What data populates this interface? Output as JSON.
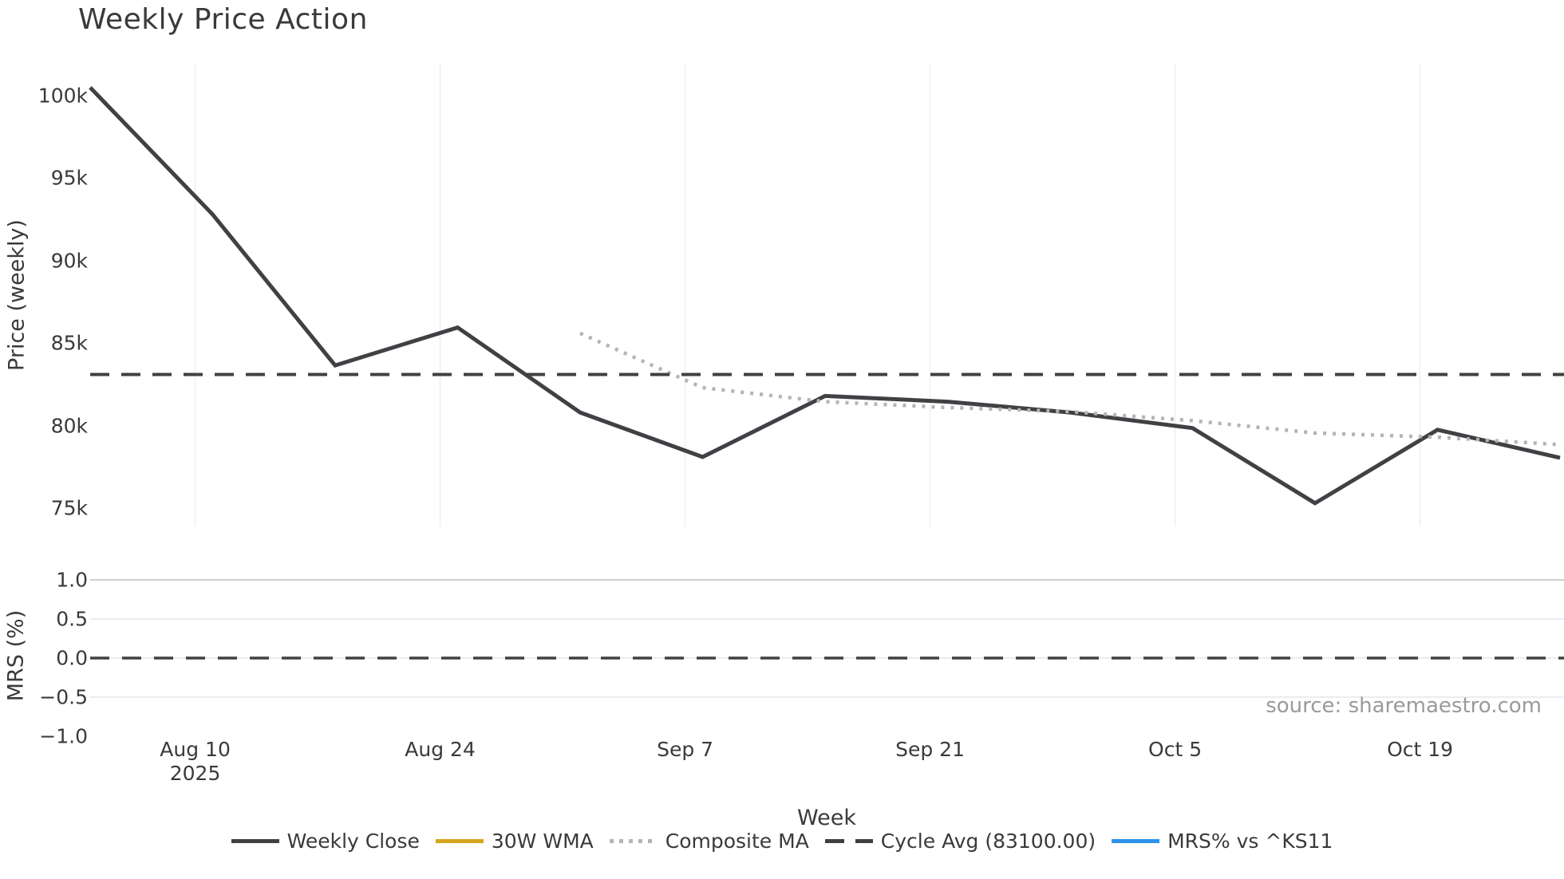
{
  "title": "Weekly Price Action",
  "source_note": "source: sharemaestro.com",
  "colors": {
    "weekly_close": "#3f4144",
    "wma_30w": "#d6a51f",
    "composite_ma": "#b4b4b4",
    "cycle_avg": "#404040",
    "mrs_line": "#2f93e8",
    "text": "#3a3a3a",
    "muted_text": "#9a9a9a",
    "grid_vertical": "#f2f2f2",
    "grid_horizontal": "#e9ecf2",
    "grid_horizontal_top": "#cdcfd2"
  },
  "price_panel": {
    "ylabel": "Price (weekly)",
    "yticks": [
      {
        "label": "100k",
        "value": 100000
      },
      {
        "label": "95k",
        "value": 95000
      },
      {
        "label": "90k",
        "value": 90000
      },
      {
        "label": "85k",
        "value": 85000
      },
      {
        "label": "80k",
        "value": 80000
      },
      {
        "label": "75k",
        "value": 75000
      }
    ]
  },
  "mrs_panel": {
    "ylabel": "MRS (%)",
    "yticks": [
      {
        "label": "1.0",
        "value": 1.0
      },
      {
        "label": "0.5",
        "value": 0.5
      },
      {
        "label": "0.0",
        "value": 0.0
      },
      {
        "label": "−0.5",
        "value": -0.5
      },
      {
        "label": "−1.0",
        "value": -1.0
      }
    ]
  },
  "x_axis": {
    "label": "Week",
    "ticks": [
      {
        "label": "Aug 10",
        "sublabel": "2025",
        "day": 6
      },
      {
        "label": "Aug 24",
        "sublabel": "",
        "day": 20
      },
      {
        "label": "Sep 7",
        "sublabel": "",
        "day": 34
      },
      {
        "label": "Sep 21",
        "sublabel": "",
        "day": 48
      },
      {
        "label": "Oct 5",
        "sublabel": "",
        "day": 62
      },
      {
        "label": "Oct 19",
        "sublabel": "",
        "day": 76
      }
    ]
  },
  "legend": [
    {
      "label": "Weekly Close",
      "style": "solid",
      "color": "#3f4144"
    },
    {
      "label": "30W WMA",
      "style": "solid",
      "color": "#d6a51f"
    },
    {
      "label": "Composite MA",
      "style": "dotted",
      "color": "#b4b4b4"
    },
    {
      "label": "Cycle Avg (83100.00)",
      "style": "dashed",
      "color": "#404040"
    },
    {
      "label": "MRS% vs ^KS11",
      "style": "solid",
      "color": "#2f93e8"
    }
  ],
  "chart_data": [
    {
      "type": "line",
      "panel": "price",
      "title": "Weekly Price Action",
      "xlabel": "Week",
      "ylabel": "Price (weekly)",
      "x_unit": "days since first visible weekly point (weekly spacing, first point ~2025-08-04)",
      "x_tick_labels": [
        "Aug 10 2025",
        "Aug 24",
        "Sep 7",
        "Sep 21",
        "Oct 5",
        "Oct 19"
      ],
      "ylim": [
        73900,
        102000
      ],
      "grid": "vertical-only",
      "series": [
        {
          "name": "Weekly Close",
          "style": "solid",
          "x": [
            0,
            7,
            14,
            21,
            28,
            35,
            42,
            49,
            56,
            63,
            70,
            77,
            84
          ],
          "values": [
            100500,
            92800,
            83650,
            85950,
            80800,
            78100,
            81800,
            81450,
            80800,
            79850,
            75300,
            79750,
            78050
          ]
        },
        {
          "name": "Composite MA",
          "style": "dotted",
          "x": [
            28,
            35,
            42,
            49,
            56,
            63,
            70,
            77,
            84
          ],
          "values": [
            85600,
            82300,
            81450,
            81100,
            80850,
            80300,
            79550,
            79300,
            78850
          ]
        },
        {
          "name": "Cycle Avg",
          "style": "dashed",
          "constant_value": 83100.0
        },
        {
          "name": "30W WMA",
          "style": "solid",
          "x": [],
          "values": [],
          "note": "in legend only; no line visible in plot"
        }
      ]
    },
    {
      "type": "line",
      "panel": "mrs",
      "ylabel": "MRS (%)",
      "ylim": [
        -1.0,
        1.28
      ],
      "grid": "horizontal-only",
      "series": [
        {
          "name": "Zero line",
          "style": "dashed",
          "constant_value": 0.0
        },
        {
          "name": "MRS% vs ^KS11",
          "style": "solid",
          "x": [],
          "values": [],
          "note": "in legend only; no line visible in plot"
        }
      ]
    }
  ]
}
